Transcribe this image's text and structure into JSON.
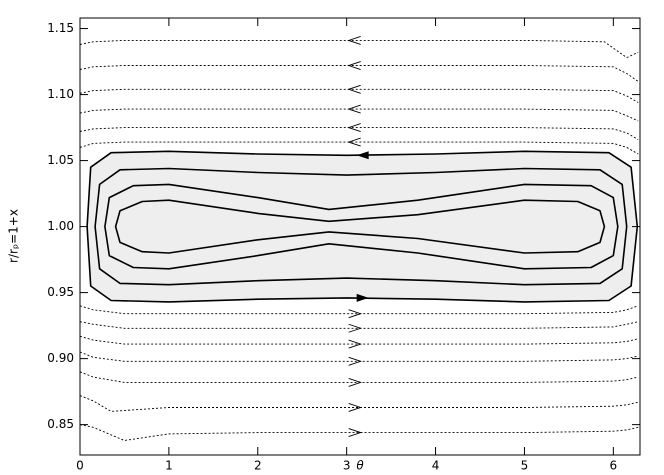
{
  "chart_data": {
    "type": "streamline",
    "xlabel": "θ",
    "ylabel": "r/rₚ=1+x",
    "xlim": [
      0,
      6.3
    ],
    "xticks": [
      0,
      1,
      2,
      3,
      4,
      5,
      6
    ],
    "ylim": [
      0.827,
      1.158
    ],
    "yticks": [
      0.85,
      {
        "value": 0.9,
        "label": "0.90"
      },
      0.95,
      {
        "value": 1.0,
        "label": "1.00"
      },
      1.05,
      {
        "value": 1.1,
        "label": "1.10"
      },
      1.15
    ],
    "series": [
      {
        "color": "#000000",
        "style": "dotted",
        "direction": "left",
        "x": [
          0,
          0.15,
          0.5,
          1,
          2,
          3,
          4,
          5,
          5.9,
          6.15,
          6.28
        ],
        "values": [
          1.138,
          1.14,
          1.141,
          1.141,
          1.141,
          1.141,
          1.141,
          1.141,
          1.14,
          1.128,
          1.132
        ]
      },
      {
        "color": "#000000",
        "style": "dotted",
        "direction": "left",
        "x": [
          0,
          0.15,
          0.5,
          1,
          2,
          3,
          4,
          5,
          6,
          6.15,
          6.28
        ],
        "values": [
          1.119,
          1.121,
          1.122,
          1.122,
          1.122,
          1.122,
          1.122,
          1.122,
          1.121,
          1.116,
          1.11
        ]
      },
      {
        "color": "#000000",
        "style": "dotted",
        "direction": "left",
        "x": [
          0,
          0.15,
          0.5,
          1,
          2,
          3,
          4,
          5,
          6,
          6.15,
          6.28
        ],
        "values": [
          1.101,
          1.103,
          1.104,
          1.104,
          1.104,
          1.104,
          1.104,
          1.104,
          1.103,
          1.099,
          1.094
        ]
      },
      {
        "color": "#000000",
        "style": "dotted",
        "direction": "left",
        "x": [
          0,
          0.15,
          0.5,
          1,
          2,
          3,
          4,
          5,
          6,
          6.15,
          6.28
        ],
        "values": [
          1.086,
          1.088,
          1.089,
          1.089,
          1.089,
          1.089,
          1.089,
          1.089,
          1.088,
          1.084,
          1.08
        ]
      },
      {
        "color": "#000000",
        "style": "dotted",
        "direction": "left",
        "x": [
          0,
          0.15,
          0.5,
          1,
          2,
          3,
          4,
          5,
          6,
          6.15,
          6.28
        ],
        "values": [
          1.072,
          1.074,
          1.075,
          1.075,
          1.075,
          1.075,
          1.075,
          1.075,
          1.074,
          1.071,
          1.066
        ]
      },
      {
        "color": "#000000",
        "style": "dotted",
        "direction": "left",
        "x": [
          0,
          0.15,
          0.5,
          1,
          2,
          3,
          4,
          5,
          6,
          6.15,
          6.28
        ],
        "values": [
          1.06,
          1.063,
          1.064,
          1.064,
          1.064,
          1.064,
          1.064,
          1.064,
          1.063,
          1.06,
          1.055
        ]
      },
      {
        "color": "#000000",
        "style": "solid",
        "closed": true,
        "fill": "#eeeeee",
        "x": [
          0.35,
          1,
          2,
          3,
          4,
          5,
          5.95,
          6.2,
          6.27,
          6.2,
          5.95,
          5,
          4,
          3,
          2,
          1,
          0.35,
          0.12,
          0.08,
          0.12
        ],
        "values": [
          1.056,
          1.057,
          1.055,
          1.054,
          1.055,
          1.057,
          1.056,
          1.045,
          1.0,
          0.955,
          0.944,
          0.943,
          0.945,
          0.946,
          0.945,
          0.943,
          0.944,
          0.955,
          1.0,
          1.045
        ]
      },
      {
        "color": "#000000",
        "style": "solid",
        "closed": true,
        "x": [
          0.45,
          1,
          2,
          3,
          4,
          5,
          5.85,
          6.1,
          6.15,
          6.1,
          5.85,
          5,
          4,
          3,
          2,
          1,
          0.45,
          0.22,
          0.17,
          0.22
        ],
        "values": [
          1.043,
          1.044,
          1.041,
          1.039,
          1.041,
          1.044,
          1.043,
          1.032,
          1.0,
          0.968,
          0.957,
          0.956,
          0.959,
          0.961,
          0.959,
          0.956,
          0.957,
          0.968,
          1.0,
          1.032
        ]
      },
      {
        "color": "#000000",
        "style": "solid",
        "closed": true,
        "x": [
          0.6,
          1,
          2,
          2.8,
          3.8,
          5,
          5.75,
          6,
          6.05,
          6,
          5.75,
          5,
          3.8,
          2.8,
          2,
          1,
          0.6,
          0.33,
          0.28,
          0.33
        ],
        "values": [
          1.031,
          1.032,
          1.022,
          1.013,
          1.02,
          1.032,
          1.031,
          1.022,
          1.0,
          0.978,
          0.969,
          0.968,
          0.98,
          0.987,
          0.978,
          0.968,
          0.969,
          0.978,
          1.0,
          1.022
        ]
      },
      {
        "color": "#000000",
        "style": "solid",
        "closed": true,
        "x": [
          0.7,
          1,
          2,
          2.8,
          3.8,
          5,
          5.6,
          5.85,
          5.9,
          5.85,
          5.6,
          5,
          3.8,
          2.8,
          2,
          1,
          0.7,
          0.45,
          0.4,
          0.45
        ],
        "values": [
          1.019,
          1.02,
          1.01,
          1.004,
          1.009,
          1.02,
          1.019,
          1.012,
          1.0,
          0.988,
          0.981,
          0.98,
          0.991,
          0.996,
          0.99,
          0.98,
          0.981,
          0.988,
          1.0,
          1.012
        ]
      },
      {
        "color": "#000000",
        "style": "dotted",
        "direction": "right",
        "x": [
          0,
          0.15,
          0.5,
          1,
          2,
          3,
          4,
          5,
          6,
          6.15,
          6.28
        ],
        "values": [
          0.94,
          0.937,
          0.934,
          0.934,
          0.934,
          0.934,
          0.934,
          0.934,
          0.935,
          0.937,
          0.94
        ]
      },
      {
        "color": "#000000",
        "style": "dotted",
        "direction": "right",
        "x": [
          0,
          0.15,
          0.5,
          1,
          2,
          3,
          4,
          5,
          6,
          6.15,
          6.28
        ],
        "values": [
          0.928,
          0.926,
          0.923,
          0.923,
          0.923,
          0.923,
          0.923,
          0.923,
          0.924,
          0.926,
          0.928
        ]
      },
      {
        "color": "#000000",
        "style": "dotted",
        "direction": "right",
        "x": [
          0,
          0.15,
          0.5,
          1,
          2,
          3,
          4,
          5,
          6,
          6.15,
          6.28
        ],
        "values": [
          0.917,
          0.914,
          0.911,
          0.911,
          0.911,
          0.911,
          0.911,
          0.911,
          0.912,
          0.913,
          0.915
        ]
      },
      {
        "color": "#000000",
        "style": "dotted",
        "direction": "right",
        "x": [
          0,
          0.15,
          0.5,
          1,
          2,
          3,
          4,
          5,
          6,
          6.15,
          6.28
        ],
        "values": [
          0.905,
          0.901,
          0.898,
          0.898,
          0.898,
          0.898,
          0.898,
          0.898,
          0.899,
          0.9,
          0.902
        ]
      },
      {
        "color": "#000000",
        "style": "dotted",
        "direction": "right",
        "x": [
          0,
          0.15,
          0.5,
          1,
          2,
          3,
          4,
          5,
          6,
          6.15,
          6.28
        ],
        "values": [
          0.89,
          0.886,
          0.882,
          0.882,
          0.882,
          0.882,
          0.882,
          0.882,
          0.883,
          0.884,
          0.886
        ]
      },
      {
        "color": "#000000",
        "style": "dotted",
        "direction": "right",
        "x": [
          0,
          0.15,
          0.35,
          1,
          2,
          3,
          4,
          5,
          6,
          6.15,
          6.28
        ],
        "values": [
          0.872,
          0.868,
          0.86,
          0.863,
          0.863,
          0.863,
          0.863,
          0.863,
          0.864,
          0.865,
          0.867
        ]
      },
      {
        "color": "#000000",
        "style": "dotted",
        "direction": "right",
        "x": [
          0,
          0.15,
          0.5,
          1,
          2,
          3,
          4,
          5,
          6,
          6.15,
          6.28
        ],
        "values": [
          0.85,
          0.848,
          0.838,
          0.843,
          0.844,
          0.844,
          0.844,
          0.844,
          0.845,
          0.846,
          0.848
        ]
      }
    ]
  }
}
